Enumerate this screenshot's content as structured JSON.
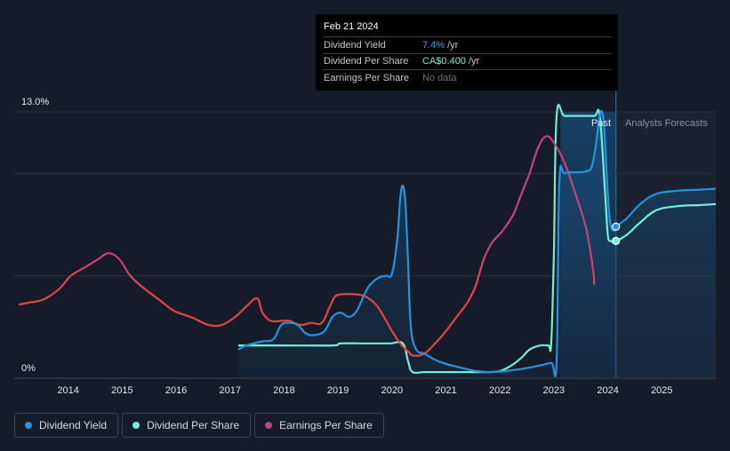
{
  "tooltip": {
    "date": "Feb 21 2024",
    "rows": [
      {
        "label": "Dividend Yield",
        "value": "7.4%",
        "unit": "/yr"
      },
      {
        "label": "Dividend Per Share",
        "value": "CA$0.400",
        "unit": "/yr"
      },
      {
        "label": "Earnings Per Share",
        "value": "No data",
        "unit": ""
      }
    ]
  },
  "legend": [
    {
      "label": "Dividend Yield",
      "color": "#2394df"
    },
    {
      "label": "Dividend Per Share",
      "color": "#6ff0d6"
    },
    {
      "label": "Earnings Per Share",
      "color": "#c4417e"
    }
  ],
  "chart_data": {
    "type": "line",
    "title": "",
    "xlabel": "",
    "ylabel": "",
    "ylim": [
      0,
      13.0
    ],
    "xlim": [
      2013.0,
      2026.0
    ],
    "y_tick_labels": [
      "13.0%",
      "0%"
    ],
    "x_ticks": [
      2014,
      2015,
      2016,
      2017,
      2018,
      2019,
      2020,
      2021,
      2022,
      2023,
      2024,
      2025
    ],
    "past_label": "Past",
    "forecast_label": "Analysts Forecasts",
    "past_region": [
      2023.12,
      2024.15
    ],
    "gridlines": [
      13.0,
      10.0,
      5.0
    ],
    "series": [
      {
        "name": "Dividend Yield",
        "color": "#2394df",
        "points": [
          [
            2017.15,
            1.4
          ],
          [
            2017.3,
            1.6
          ],
          [
            2017.6,
            1.8
          ],
          [
            2017.8,
            1.9
          ],
          [
            2017.95,
            2.6
          ],
          [
            2018.1,
            2.7
          ],
          [
            2018.25,
            2.6
          ],
          [
            2018.4,
            2.2
          ],
          [
            2018.55,
            2.1
          ],
          [
            2018.75,
            2.3
          ],
          [
            2018.9,
            3.0
          ],
          [
            2019.05,
            3.2
          ],
          [
            2019.2,
            3.0
          ],
          [
            2019.35,
            3.3
          ],
          [
            2019.55,
            4.4
          ],
          [
            2019.75,
            4.9
          ],
          [
            2019.9,
            5.0
          ],
          [
            2020.0,
            5.1
          ],
          [
            2020.1,
            6.8
          ],
          [
            2020.15,
            8.7
          ],
          [
            2020.2,
            9.4
          ],
          [
            2020.25,
            8.5
          ],
          [
            2020.3,
            5.5
          ],
          [
            2020.35,
            2.5
          ],
          [
            2020.45,
            1.4
          ],
          [
            2020.6,
            1.2
          ],
          [
            2020.8,
            0.9
          ],
          [
            2021.0,
            0.7
          ],
          [
            2021.3,
            0.5
          ],
          [
            2021.55,
            0.35
          ],
          [
            2021.8,
            0.3
          ],
          [
            2022.1,
            0.35
          ],
          [
            2022.4,
            0.45
          ],
          [
            2022.7,
            0.6
          ],
          [
            2022.95,
            0.75
          ],
          [
            2023.05,
            0.8
          ],
          [
            2023.1,
            9.5
          ],
          [
            2023.2,
            10.0
          ],
          [
            2023.45,
            10.05
          ],
          [
            2023.6,
            10.1
          ],
          [
            2023.7,
            10.3
          ],
          [
            2023.78,
            11.4
          ],
          [
            2023.85,
            12.8
          ],
          [
            2023.92,
            12.6
          ],
          [
            2024.0,
            9.0
          ],
          [
            2024.05,
            7.5
          ],
          [
            2024.12,
            7.2
          ],
          [
            2024.15,
            7.4
          ],
          [
            2024.35,
            7.8
          ],
          [
            2024.6,
            8.5
          ],
          [
            2024.9,
            9.0
          ],
          [
            2025.3,
            9.15
          ],
          [
            2025.7,
            9.2
          ],
          [
            2026.0,
            9.25
          ]
        ]
      },
      {
        "name": "Dividend Per Share",
        "color": "#6ff0d6",
        "points": [
          [
            2017.15,
            1.6
          ],
          [
            2018.0,
            1.6
          ],
          [
            2018.9,
            1.6
          ],
          [
            2019.05,
            1.7
          ],
          [
            2019.5,
            1.7
          ],
          [
            2019.95,
            1.7
          ],
          [
            2020.2,
            1.7
          ],
          [
            2020.3,
            0.8
          ],
          [
            2020.38,
            0.3
          ],
          [
            2020.6,
            0.3
          ],
          [
            2021.0,
            0.3
          ],
          [
            2021.5,
            0.3
          ],
          [
            2021.8,
            0.3
          ],
          [
            2022.0,
            0.35
          ],
          [
            2022.2,
            0.6
          ],
          [
            2022.4,
            1.0
          ],
          [
            2022.55,
            1.4
          ],
          [
            2022.75,
            1.6
          ],
          [
            2022.9,
            1.6
          ],
          [
            2022.95,
            1.7
          ],
          [
            2023.0,
            6.0
          ],
          [
            2023.05,
            12.8
          ],
          [
            2023.2,
            12.8
          ],
          [
            2023.5,
            12.8
          ],
          [
            2023.75,
            12.8
          ],
          [
            2023.85,
            12.8
          ],
          [
            2023.95,
            9.0
          ],
          [
            2024.0,
            7.0
          ],
          [
            2024.05,
            6.7
          ],
          [
            2024.15,
            6.7
          ],
          [
            2024.35,
            7.0
          ],
          [
            2024.6,
            7.6
          ],
          [
            2024.9,
            8.2
          ],
          [
            2025.3,
            8.4
          ],
          [
            2025.7,
            8.45
          ],
          [
            2026.0,
            8.5
          ]
        ]
      },
      {
        "name": "Earnings Per Share",
        "color_past": "#c4417e",
        "color_low": "#e04444",
        "points": [
          [
            2013.1,
            3.6
          ],
          [
            2013.3,
            3.7
          ],
          [
            2013.5,
            3.8
          ],
          [
            2013.65,
            4.0
          ],
          [
            2013.85,
            4.4
          ],
          [
            2014.05,
            5.0
          ],
          [
            2014.3,
            5.4
          ],
          [
            2014.55,
            5.8
          ],
          [
            2014.75,
            6.1
          ],
          [
            2014.95,
            5.8
          ],
          [
            2015.15,
            5.0
          ],
          [
            2015.4,
            4.4
          ],
          [
            2015.7,
            3.8
          ],
          [
            2015.95,
            3.3
          ],
          [
            2016.15,
            3.1
          ],
          [
            2016.35,
            2.9
          ],
          [
            2016.6,
            2.6
          ],
          [
            2016.85,
            2.6
          ],
          [
            2017.1,
            3.0
          ],
          [
            2017.3,
            3.5
          ],
          [
            2017.5,
            3.9
          ],
          [
            2017.6,
            3.2
          ],
          [
            2017.75,
            2.8
          ],
          [
            2017.95,
            2.8
          ],
          [
            2018.1,
            2.8
          ],
          [
            2018.3,
            2.6
          ],
          [
            2018.5,
            2.7
          ],
          [
            2018.7,
            2.7
          ],
          [
            2018.85,
            3.5
          ],
          [
            2018.95,
            4.0
          ],
          [
            2019.1,
            4.1
          ],
          [
            2019.3,
            4.1
          ],
          [
            2019.5,
            4.0
          ],
          [
            2019.7,
            3.6
          ],
          [
            2019.85,
            3.0
          ],
          [
            2020.0,
            2.3
          ],
          [
            2020.15,
            1.7
          ],
          [
            2020.3,
            1.3
          ],
          [
            2020.4,
            1.1
          ],
          [
            2020.6,
            1.2
          ],
          [
            2020.8,
            1.7
          ],
          [
            2021.0,
            2.3
          ],
          [
            2021.2,
            3.0
          ],
          [
            2021.4,
            3.7
          ],
          [
            2021.55,
            4.5
          ],
          [
            2021.7,
            5.8
          ],
          [
            2021.85,
            6.6
          ],
          [
            2022.05,
            7.2
          ],
          [
            2022.25,
            8.0
          ],
          [
            2022.4,
            9.0
          ],
          [
            2022.55,
            10.0
          ],
          [
            2022.7,
            11.2
          ],
          [
            2022.85,
            11.8
          ],
          [
            2023.0,
            11.5
          ],
          [
            2023.2,
            10.5
          ],
          [
            2023.4,
            9.0
          ],
          [
            2023.6,
            7.3
          ],
          [
            2023.72,
            5.4
          ],
          [
            2023.75,
            4.6
          ]
        ]
      }
    ],
    "markers": [
      {
        "series": "Dividend Yield",
        "x": 2024.15,
        "y": 7.4
      },
      {
        "series": "Dividend Per Share",
        "x": 2024.15,
        "y": 6.7
      }
    ]
  }
}
